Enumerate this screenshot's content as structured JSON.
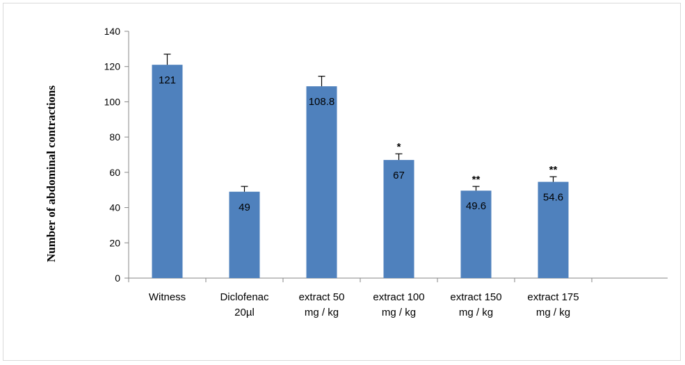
{
  "chart_data": {
    "type": "bar",
    "title": "",
    "xlabel": "",
    "ylabel": "Number of abdominal contractions",
    "ylim": [
      0,
      140
    ],
    "yticks": [
      0,
      20,
      40,
      60,
      80,
      100,
      120,
      140
    ],
    "grid": false,
    "legend": "none",
    "bar_color": "#4f81bd",
    "categories": [
      [
        "Witness"
      ],
      [
        "Diclofenac",
        "20µl"
      ],
      [
        "extract 50",
        "mg / kg"
      ],
      [
        "extract 100",
        "mg / kg"
      ],
      [
        "extract 150",
        "mg / kg"
      ],
      [
        "extract 175",
        "mg / kg"
      ]
    ],
    "values": [
      121,
      49,
      108.8,
      67,
      49.6,
      54.6
    ],
    "data_labels": [
      "121",
      "49",
      "108.8",
      "67",
      "49.6",
      "54.6"
    ],
    "error_upper": [
      127,
      52,
      114.5,
      70.5,
      52,
      57.5
    ],
    "significance": [
      "",
      "",
      "",
      "*",
      "**",
      "**"
    ]
  }
}
